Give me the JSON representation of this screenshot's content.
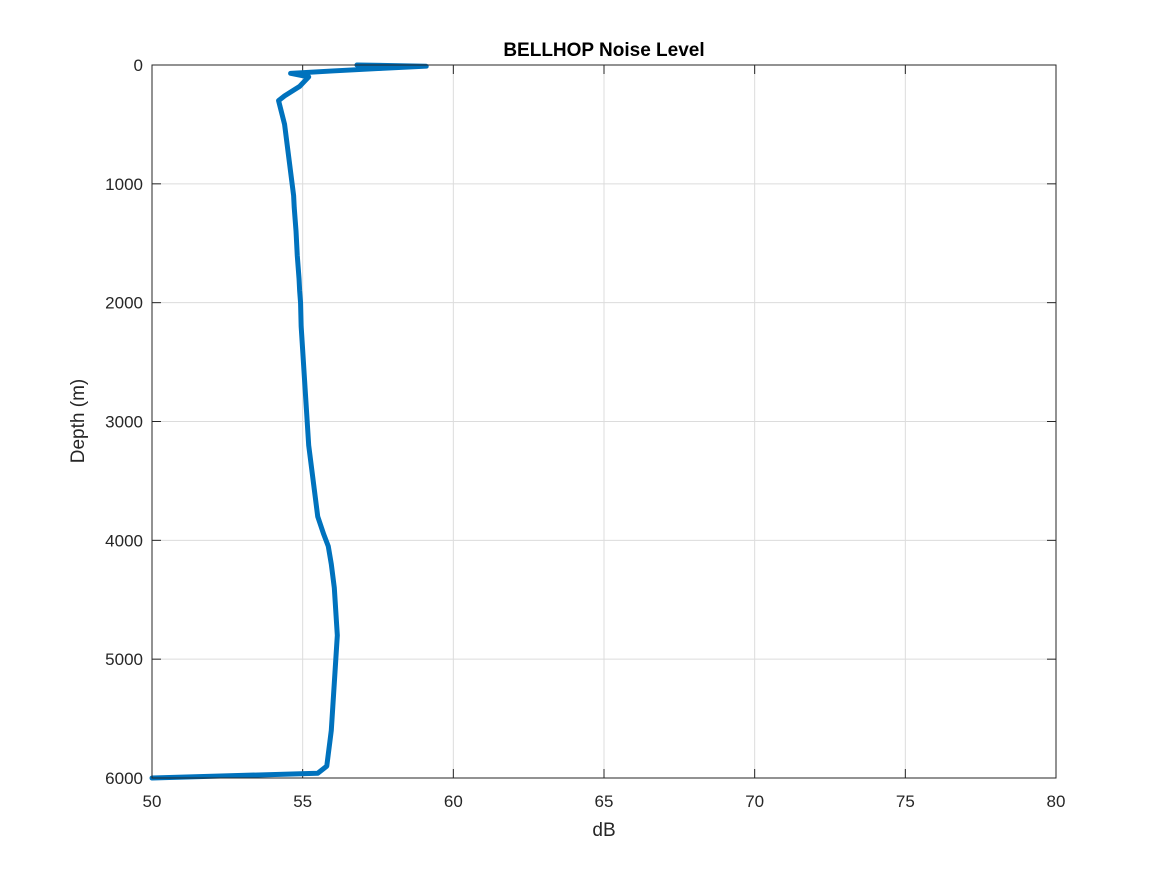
{
  "chart_data": {
    "type": "line",
    "title": "BELLHOP Noise Level",
    "xlabel": "dB",
    "ylabel": "Depth (m)",
    "xlim": [
      50,
      80
    ],
    "ylim": [
      0,
      6000
    ],
    "y_reversed": true,
    "grid": true,
    "xticks": [
      "50",
      "55",
      "60",
      "65",
      "70",
      "75",
      "80"
    ],
    "yticks": [
      "0",
      "1000",
      "2000",
      "3000",
      "4000",
      "5000",
      "6000"
    ],
    "line_color": "#0072BD",
    "series": [
      {
        "x": [
          56.8,
          59.1,
          57.5,
          56.0,
          54.6,
          55.2,
          54.9,
          54.4,
          54.2,
          54.3,
          54.4,
          54.45,
          54.5,
          54.55,
          54.6,
          54.65,
          54.7,
          54.72,
          54.75,
          54.78,
          54.8,
          54.82,
          54.85,
          54.88,
          54.9,
          54.93,
          54.95,
          55.0,
          55.05,
          55.1,
          55.15,
          55.2,
          55.3,
          55.4,
          55.5,
          55.7,
          55.85,
          55.95,
          56.05,
          56.1,
          56.15,
          56.1,
          56.05,
          56.0,
          55.95,
          55.9,
          55.85,
          55.8,
          55.5,
          50.0
        ],
        "y": [
          0,
          10,
          30,
          50,
          70,
          100,
          180,
          260,
          300,
          400,
          500,
          600,
          700,
          800,
          900,
          1000,
          1100,
          1200,
          1300,
          1400,
          1500,
          1600,
          1700,
          1800,
          1900,
          2000,
          2200,
          2400,
          2600,
          2800,
          3000,
          3200,
          3400,
          3600,
          3800,
          3950,
          4050,
          4200,
          4400,
          4600,
          4800,
          5000,
          5200,
          5400,
          5600,
          5700,
          5800,
          5900,
          5960,
          6000
        ]
      }
    ]
  }
}
